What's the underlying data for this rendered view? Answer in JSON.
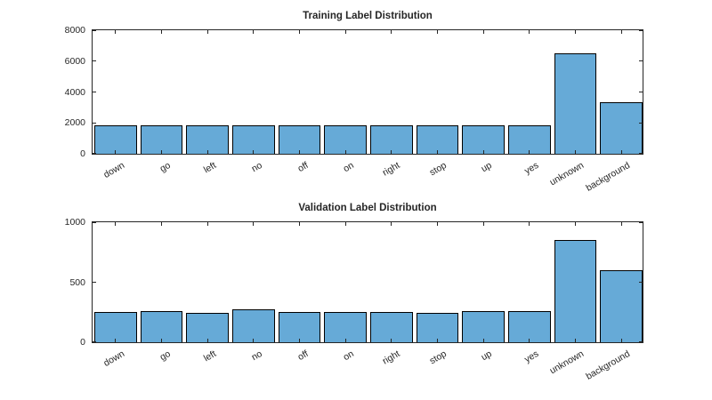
{
  "figure": {
    "background": "#ffffff",
    "axis_color": "#262626",
    "text_color": "#262626",
    "bar_fill": "#66AAD7",
    "bar_edge": "#000000"
  },
  "chart_data": [
    {
      "type": "bar",
      "title": "Training Label Distribution",
      "categories": [
        "down",
        "go",
        "left",
        "no",
        "off",
        "on",
        "right",
        "stop",
        "up",
        "yes",
        "unknown",
        "background"
      ],
      "values": [
        1850,
        1850,
        1850,
        1850,
        1850,
        1850,
        1850,
        1850,
        1850,
        1850,
        6500,
        3350
      ],
      "xlabel": "",
      "ylabel": "",
      "ylim": [
        0,
        8000
      ],
      "yticks": [
        0,
        2000,
        4000,
        6000,
        8000
      ],
      "grid": false,
      "legend": "none",
      "bar_width_fraction": 0.92,
      "xtick_rotation_deg": -30
    },
    {
      "type": "bar",
      "title": "Validation Label Distribution",
      "categories": [
        "down",
        "go",
        "left",
        "no",
        "off",
        "on",
        "right",
        "stop",
        "up",
        "yes",
        "unknown",
        "background"
      ],
      "values": [
        254,
        261,
        243,
        272,
        250,
        254,
        251,
        241,
        257,
        256,
        850,
        600
      ],
      "xlabel": "",
      "ylabel": "",
      "ylim": [
        0,
        1000
      ],
      "yticks": [
        0,
        500,
        1000
      ],
      "grid": false,
      "legend": "none",
      "bar_width_fraction": 0.92,
      "xtick_rotation_deg": -30
    }
  ]
}
